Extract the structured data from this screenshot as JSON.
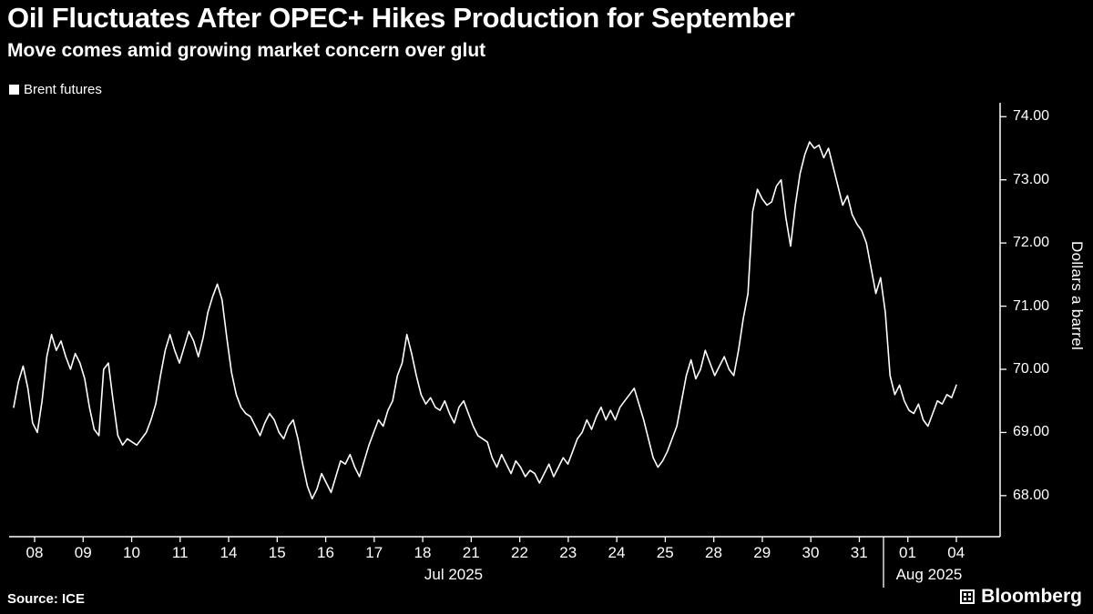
{
  "header": {
    "title": "Oil Fluctuates After OPEC+ Hikes Production for September",
    "subtitle": "Move comes amid growing market concern over glut"
  },
  "legend": {
    "items": [
      {
        "label": "Brent futures",
        "color": "#ffffff"
      }
    ]
  },
  "y_axis": {
    "label": "Dollars a barrel",
    "ticks": [
      "74.00",
      "73.00",
      "72.00",
      "71.00",
      "70.00",
      "69.00",
      "68.00"
    ],
    "side": "right"
  },
  "x_axis": {
    "day_labels": [
      "08",
      "09",
      "10",
      "11",
      "14",
      "15",
      "16",
      "17",
      "18",
      "21",
      "22",
      "23",
      "24",
      "25",
      "28",
      "29",
      "30",
      "31",
      "01",
      "04"
    ],
    "month_labels": [
      {
        "label": "Jul 2025"
      },
      {
        "label": "Aug 2025"
      }
    ]
  },
  "footer": {
    "source": "Source: ICE",
    "brand": "Bloomberg"
  },
  "colors": {
    "background": "#000000",
    "foreground": "#ffffff",
    "line": "#ffffff"
  },
  "chart_data": {
    "type": "line",
    "title": "Oil Fluctuates After OPEC+ Hikes Production for September",
    "subtitle": "Move comes amid growing market concern over glut",
    "xlabel": "Jul 2025 / Aug 2025",
    "ylabel": "Dollars a barrel",
    "ylim": [
      67.35,
      74.22
    ],
    "yticks": [
      68.0,
      69.0,
      70.0,
      71.0,
      72.0,
      73.0,
      74.0
    ],
    "grid": false,
    "legend_position": "top-left",
    "axis_side": "right",
    "x_days": [
      "08",
      "09",
      "10",
      "11",
      "14",
      "15",
      "16",
      "17",
      "18",
      "21",
      "22",
      "23",
      "24",
      "25",
      "28",
      "29",
      "30",
      "31",
      "01",
      "04"
    ],
    "points_per_day": 10,
    "series": [
      {
        "name": "Brent futures",
        "color": "#ffffff",
        "values": [
          69.4,
          69.8,
          70.05,
          69.7,
          69.15,
          69.0,
          69.5,
          70.2,
          70.55,
          70.3,
          70.45,
          70.2,
          70.0,
          70.25,
          70.1,
          69.85,
          69.4,
          69.05,
          68.95,
          70.0,
          70.1,
          69.5,
          68.95,
          68.8,
          68.9,
          68.85,
          68.8,
          68.9,
          69.0,
          69.2,
          69.45,
          69.9,
          70.3,
          70.55,
          70.3,
          70.1,
          70.35,
          70.6,
          70.45,
          70.2,
          70.5,
          70.9,
          71.15,
          71.35,
          71.1,
          70.5,
          69.95,
          69.6,
          69.4,
          69.3,
          69.25,
          69.1,
          68.95,
          69.15,
          69.3,
          69.2,
          69.0,
          68.9,
          69.1,
          69.2,
          68.9,
          68.5,
          68.15,
          67.95,
          68.1,
          68.35,
          68.2,
          68.05,
          68.3,
          68.55,
          68.5,
          68.65,
          68.45,
          68.3,
          68.55,
          68.8,
          69.0,
          69.2,
          69.1,
          69.35,
          69.5,
          69.9,
          70.1,
          70.55,
          70.25,
          69.9,
          69.6,
          69.45,
          69.55,
          69.4,
          69.35,
          69.5,
          69.3,
          69.15,
          69.4,
          69.5,
          69.3,
          69.1,
          68.95,
          68.9,
          68.85,
          68.6,
          68.45,
          68.65,
          68.5,
          68.35,
          68.55,
          68.45,
          68.3,
          68.4,
          68.35,
          68.2,
          68.35,
          68.5,
          68.3,
          68.45,
          68.6,
          68.5,
          68.7,
          68.9,
          69.0,
          69.2,
          69.05,
          69.25,
          69.4,
          69.2,
          69.35,
          69.2,
          69.4,
          69.5,
          69.6,
          69.7,
          69.45,
          69.2,
          68.9,
          68.6,
          68.45,
          68.55,
          68.7,
          68.9,
          69.1,
          69.5,
          69.9,
          70.15,
          69.85,
          70.0,
          70.3,
          70.1,
          69.9,
          70.05,
          70.2,
          70.0,
          69.9,
          70.3,
          70.8,
          71.2,
          72.5,
          72.85,
          72.7,
          72.6,
          72.65,
          72.9,
          73.0,
          72.4,
          71.95,
          72.6,
          73.1,
          73.4,
          73.6,
          73.5,
          73.55,
          73.35,
          73.5,
          73.2,
          72.9,
          72.6,
          72.75,
          72.45,
          72.3,
          72.2,
          72.0,
          71.6,
          71.2,
          71.45,
          70.9,
          69.9,
          69.6,
          69.75,
          69.5,
          69.35,
          69.3,
          69.45,
          69.2,
          69.1,
          69.3,
          69.5,
          69.45,
          69.6,
          69.55,
          69.75
        ]
      }
    ]
  }
}
